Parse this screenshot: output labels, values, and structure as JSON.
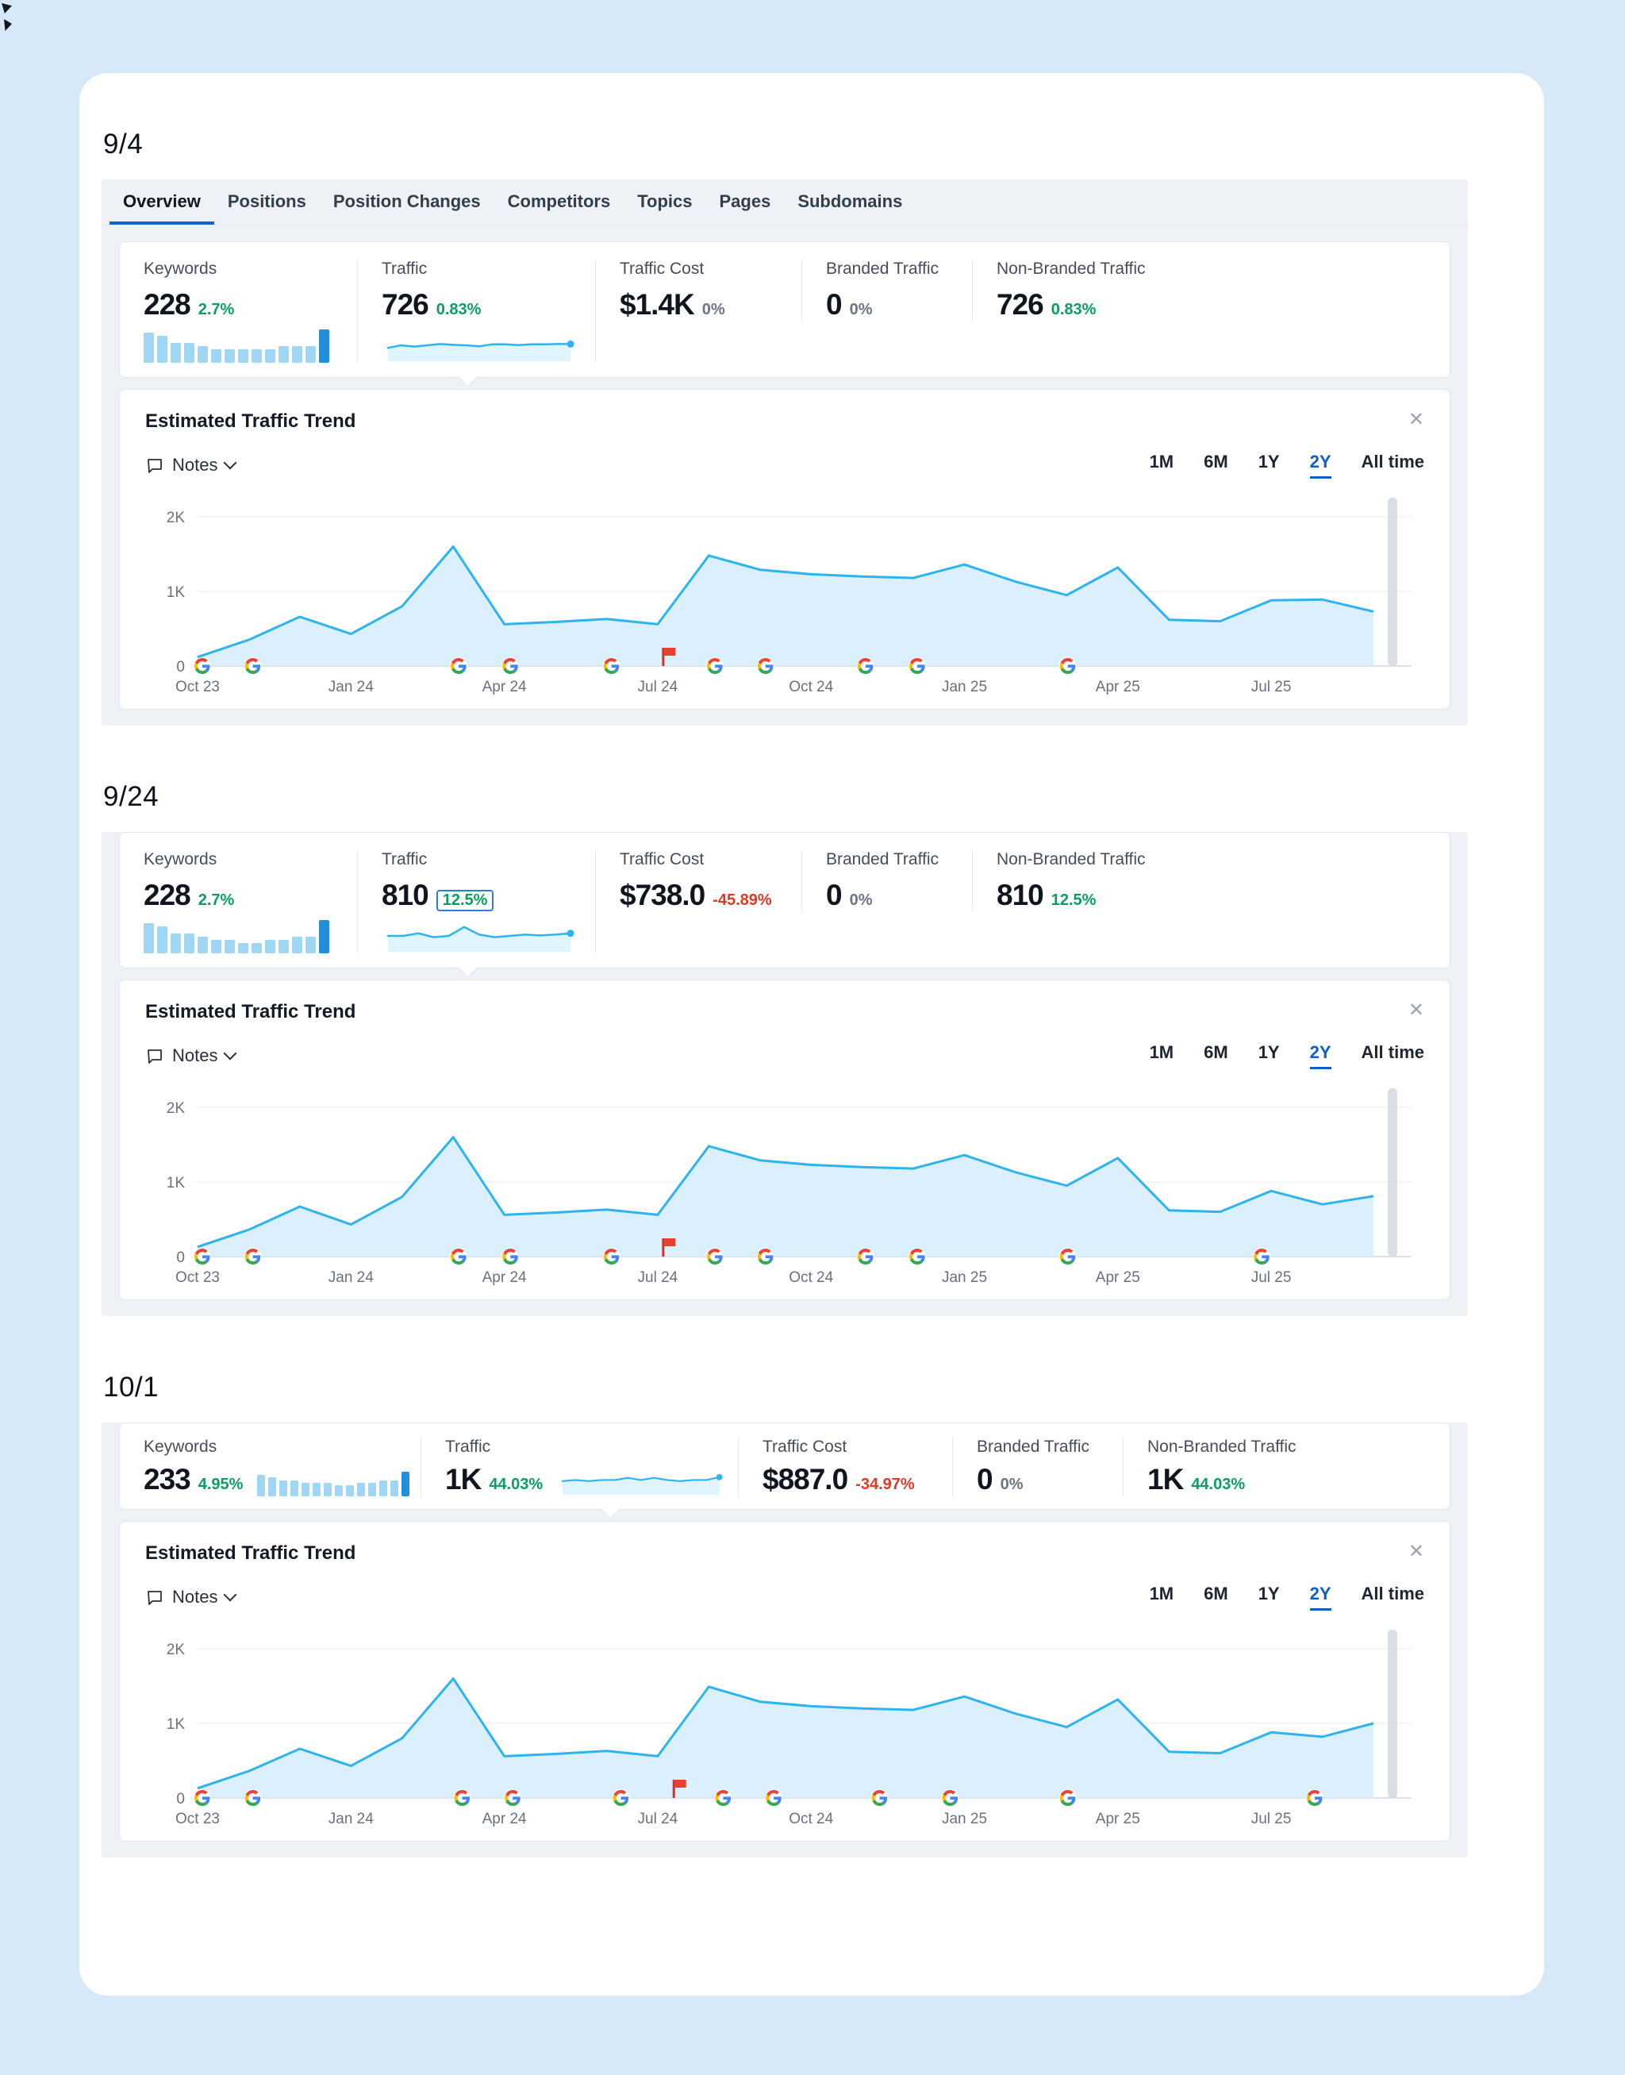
{
  "colors": {
    "chart_line": "#2db4f0",
    "chart_fill": "#d5edfb",
    "positive": "#089e61",
    "negative": "#dd3a26",
    "neutral": "#6b7482",
    "accent": "#0d5fc4",
    "bar_light": "#9ed6f4",
    "bar_dark": "#1e8fd8"
  },
  "tabs": [
    "Overview",
    "Positions",
    "Position Changes",
    "Competitors",
    "Topics",
    "Pages",
    "Subdomains"
  ],
  "active_tab": "Overview",
  "time_ranges": [
    "1M",
    "6M",
    "1Y",
    "2Y",
    "All time"
  ],
  "active_range": "2Y",
  "close_label": "✕",
  "sections": [
    {
      "date": "9/4",
      "show_tabs": true,
      "compact": false,
      "metrics": {
        "keywords": {
          "label": "Keywords",
          "value": "228",
          "delta": "2.7%",
          "delta_color": "green",
          "bars": [
            9,
            8,
            6,
            6,
            5,
            4,
            4,
            4,
            4,
            4,
            5,
            5,
            5,
            10
          ]
        },
        "traffic": {
          "label": "Traffic",
          "value": "726",
          "delta": "0.83%",
          "delta_color": "green",
          "highlight": false,
          "spark": [
            4,
            5,
            4.5,
            5,
            5.5,
            5.2,
            5,
            4.6,
            5.4,
            5.4,
            5.1,
            5.4,
            5.4,
            5.5,
            5.5
          ]
        },
        "cost": {
          "label": "Traffic Cost",
          "value": "$1.4K",
          "delta": "0%",
          "delta_color": "gray"
        },
        "branded": {
          "label": "Branded Traffic",
          "value": "0",
          "delta": "0%",
          "delta_color": "gray"
        },
        "non_branded": {
          "label": "Non-Branded Traffic",
          "value": "726",
          "delta": "0.83%",
          "delta_color": "green"
        }
      },
      "chart": {
        "type": "area",
        "title": "Estimated Traffic Trend",
        "notes_label": "Notes",
        "y_ticks": [
          "2K",
          "1K",
          "0"
        ],
        "x_ticks": [
          "Oct 23",
          "Jan 24",
          "Apr 24",
          "Jul 24",
          "Oct 24",
          "Jan 25",
          "Apr 25",
          "Jul 25"
        ],
        "values": [
          120,
          350,
          660,
          430,
          800,
          1600,
          560,
          590,
          630,
          560,
          1480,
          1290,
          1230,
          1200,
          1180,
          1360,
          1130,
          950,
          1320,
          620,
          600,
          880,
          890,
          730
        ],
        "annotations": [
          {
            "type": "google",
            "x": 0.004
          },
          {
            "type": "google",
            "x": 0.047
          },
          {
            "type": "google",
            "x": 0.222
          },
          {
            "type": "google",
            "x": 0.266
          },
          {
            "type": "google",
            "x": 0.352
          },
          {
            "type": "flag",
            "x": 0.396
          },
          {
            "type": "google",
            "x": 0.44
          },
          {
            "type": "google",
            "x": 0.483
          },
          {
            "type": "google",
            "x": 0.568
          },
          {
            "type": "google",
            "x": 0.612
          },
          {
            "type": "google",
            "x": 0.74
          }
        ]
      }
    },
    {
      "date": "9/24",
      "show_tabs": false,
      "compact": false,
      "metrics": {
        "keywords": {
          "label": "Keywords",
          "value": "228",
          "delta": "2.7%",
          "delta_color": "green",
          "bars": [
            9,
            8,
            6,
            6,
            5,
            4,
            4,
            3,
            3,
            4,
            4,
            5,
            5,
            10
          ]
        },
        "traffic": {
          "label": "Traffic",
          "value": "810",
          "delta": "12.5%",
          "delta_color": "green",
          "highlight": true,
          "spark": [
            5,
            5,
            6,
            4.5,
            5,
            8.5,
            5.5,
            4.5,
            5,
            5.5,
            5.2,
            5.5,
            6
          ]
        },
        "cost": {
          "label": "Traffic Cost",
          "value": "$738.0",
          "delta": "-45.89%",
          "delta_color": "red"
        },
        "branded": {
          "label": "Branded Traffic",
          "value": "0",
          "delta": "0%",
          "delta_color": "gray"
        },
        "non_branded": {
          "label": "Non-Branded Traffic",
          "value": "810",
          "delta": "12.5%",
          "delta_color": "green"
        }
      },
      "chart": {
        "type": "area",
        "title": "Estimated Traffic Trend",
        "notes_label": "Notes",
        "y_ticks": [
          "2K",
          "1K",
          "0"
        ],
        "x_ticks": [
          "Oct 23",
          "Jan 24",
          "Apr 24",
          "Jul 24",
          "Oct 24",
          "Jan 25",
          "Apr 25",
          "Jul 25"
        ],
        "values": [
          130,
          360,
          670,
          430,
          800,
          1600,
          560,
          590,
          630,
          560,
          1480,
          1290,
          1230,
          1200,
          1180,
          1360,
          1130,
          950,
          1320,
          620,
          600,
          880,
          700,
          810
        ],
        "annotations": [
          {
            "type": "google",
            "x": 0.004
          },
          {
            "type": "google",
            "x": 0.047
          },
          {
            "type": "google",
            "x": 0.222
          },
          {
            "type": "google",
            "x": 0.266
          },
          {
            "type": "google",
            "x": 0.352
          },
          {
            "type": "flag",
            "x": 0.396
          },
          {
            "type": "google",
            "x": 0.44
          },
          {
            "type": "google",
            "x": 0.483
          },
          {
            "type": "google",
            "x": 0.568
          },
          {
            "type": "google",
            "x": 0.612
          },
          {
            "type": "google",
            "x": 0.74
          },
          {
            "type": "google",
            "x": 0.905
          }
        ]
      }
    },
    {
      "date": "10/1",
      "show_tabs": false,
      "compact": true,
      "metrics": {
        "keywords": {
          "label": "Keywords",
          "value": "233",
          "delta": "4.95%",
          "delta_color": "green",
          "bars": [
            8,
            7,
            6,
            6,
            5,
            5,
            5,
            4,
            4,
            5,
            5,
            6,
            6,
            9
          ]
        },
        "traffic": {
          "label": "Traffic",
          "value": "1K",
          "delta": "44.03%",
          "delta_color": "green",
          "highlight": false,
          "spark": [
            5,
            5.5,
            5,
            5.5,
            5.5,
            6.5,
            5.5,
            6.5,
            5.5,
            5,
            5.5,
            5.5,
            6.8
          ]
        },
        "cost": {
          "label": "Traffic Cost",
          "value": "$887.0",
          "delta": "-34.97%",
          "delta_color": "red"
        },
        "branded": {
          "label": "Branded Traffic",
          "value": "0",
          "delta": "0%",
          "delta_color": "gray"
        },
        "non_branded": {
          "label": "Non-Branded Traffic",
          "value": "1K",
          "delta": "44.03%",
          "delta_color": "green"
        }
      },
      "chart": {
        "type": "area",
        "title": "Estimated Traffic Trend",
        "notes_label": "Notes",
        "y_ticks": [
          "2K",
          "1K",
          "0"
        ],
        "x_ticks": [
          "Oct 23",
          "Jan 24",
          "Apr 24",
          "Jul 24",
          "Oct 24",
          "Jan 25",
          "Apr 25",
          "Jul 25"
        ],
        "values": [
          130,
          360,
          660,
          430,
          800,
          1600,
          560,
          590,
          630,
          560,
          1490,
          1290,
          1230,
          1200,
          1180,
          1360,
          1130,
          950,
          1320,
          620,
          600,
          880,
          820,
          1000
        ],
        "annotations": [
          {
            "type": "google",
            "x": 0.004
          },
          {
            "type": "google",
            "x": 0.047
          },
          {
            "type": "google",
            "x": 0.225
          },
          {
            "type": "google",
            "x": 0.268
          },
          {
            "type": "google",
            "x": 0.36
          },
          {
            "type": "flag",
            "x": 0.405
          },
          {
            "type": "google",
            "x": 0.447
          },
          {
            "type": "google",
            "x": 0.49
          },
          {
            "type": "google",
            "x": 0.58
          },
          {
            "type": "google",
            "x": 0.64
          },
          {
            "type": "google",
            "x": 0.74
          },
          {
            "type": "google",
            "x": 0.95
          }
        ]
      }
    }
  ]
}
